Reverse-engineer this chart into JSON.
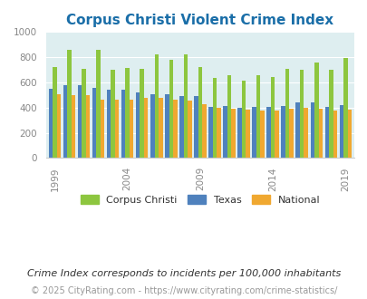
{
  "title": "Corpus Christi Violent Crime Index",
  "subtitle": "Crime Index corresponds to incidents per 100,000 inhabitants",
  "footer": "© 2025 CityRating.com - https://www.cityrating.com/crime-statistics/",
  "years": [
    1999,
    2000,
    2001,
    2002,
    2003,
    2004,
    2005,
    2006,
    2007,
    2008,
    2009,
    2010,
    2011,
    2012,
    2013,
    2014,
    2015,
    2016,
    2017,
    2018,
    2019
  ],
  "corpus_christi": [
    720,
    860,
    710,
    860,
    700,
    715,
    710,
    820,
    780,
    820,
    720,
    635,
    655,
    615,
    655,
    645,
    710,
    700,
    760,
    700,
    795
  ],
  "texas": [
    550,
    575,
    580,
    555,
    540,
    545,
    520,
    510,
    510,
    490,
    490,
    405,
    410,
    400,
    405,
    405,
    415,
    440,
    440,
    405,
    420
  ],
  "national": [
    510,
    500,
    500,
    465,
    465,
    465,
    480,
    475,
    465,
    455,
    430,
    400,
    395,
    385,
    380,
    375,
    395,
    400,
    395,
    380,
    385
  ],
  "bar_colors": {
    "corpus_christi": "#8dc63f",
    "texas": "#4f81bd",
    "national": "#f0a830"
  },
  "ylim": [
    0,
    1000
  ],
  "yticks": [
    0,
    200,
    400,
    600,
    800,
    1000
  ],
  "plot_bg": "#deeef0",
  "title_color": "#1a6ea8",
  "title_fontsize": 11,
  "subtitle_color": "#333333",
  "subtitle_fontsize": 8,
  "footer_color": "#999999",
  "footer_fontsize": 7,
  "legend_labels": [
    "Corpus Christi",
    "Texas",
    "National"
  ],
  "xtick_years": [
    1999,
    2004,
    2009,
    2014,
    2019
  ]
}
